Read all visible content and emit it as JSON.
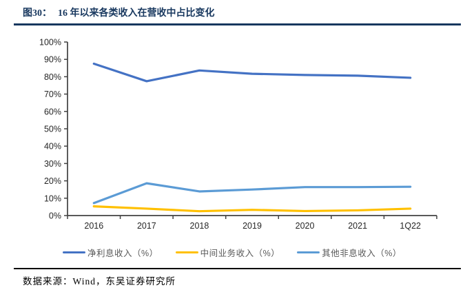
{
  "header": {
    "figure_label": "图30：",
    "title": "16 年以来各类收入在营收中占比变化"
  },
  "footer": {
    "source": "数据来源：Wind，东吴证券研究所"
  },
  "colors": {
    "title": "#17375E",
    "axis": "#404040",
    "tick_label": "#262626",
    "legend_text": "#595959",
    "footer_rule": "#000000"
  },
  "chart_data": {
    "type": "line",
    "title": "16 年以来各类收入在营收中占比变化",
    "categories": [
      "2016",
      "2017",
      "2018",
      "2019",
      "2020",
      "2021",
      "1Q22"
    ],
    "series": [
      {
        "name": "净利息收入（%）",
        "color": "#4472C4",
        "values": [
          87.5,
          77.4,
          83.6,
          81.7,
          81.0,
          80.6,
          79.4
        ]
      },
      {
        "name": "中间业务收入（%）",
        "color": "#FFC000",
        "values": [
          5.3,
          4.0,
          2.5,
          3.3,
          2.6,
          3.0,
          4.0
        ]
      },
      {
        "name": "其他非息收入（%）",
        "color": "#5B9BD5",
        "values": [
          7.2,
          18.6,
          13.9,
          15.0,
          16.4,
          16.4,
          16.6
        ]
      }
    ],
    "ylim": [
      0,
      100
    ],
    "ytick_step": 10,
    "ytick_suffix": "%",
    "xlabel": "",
    "ylabel": "",
    "grid": false,
    "legend_position": "bottom"
  }
}
